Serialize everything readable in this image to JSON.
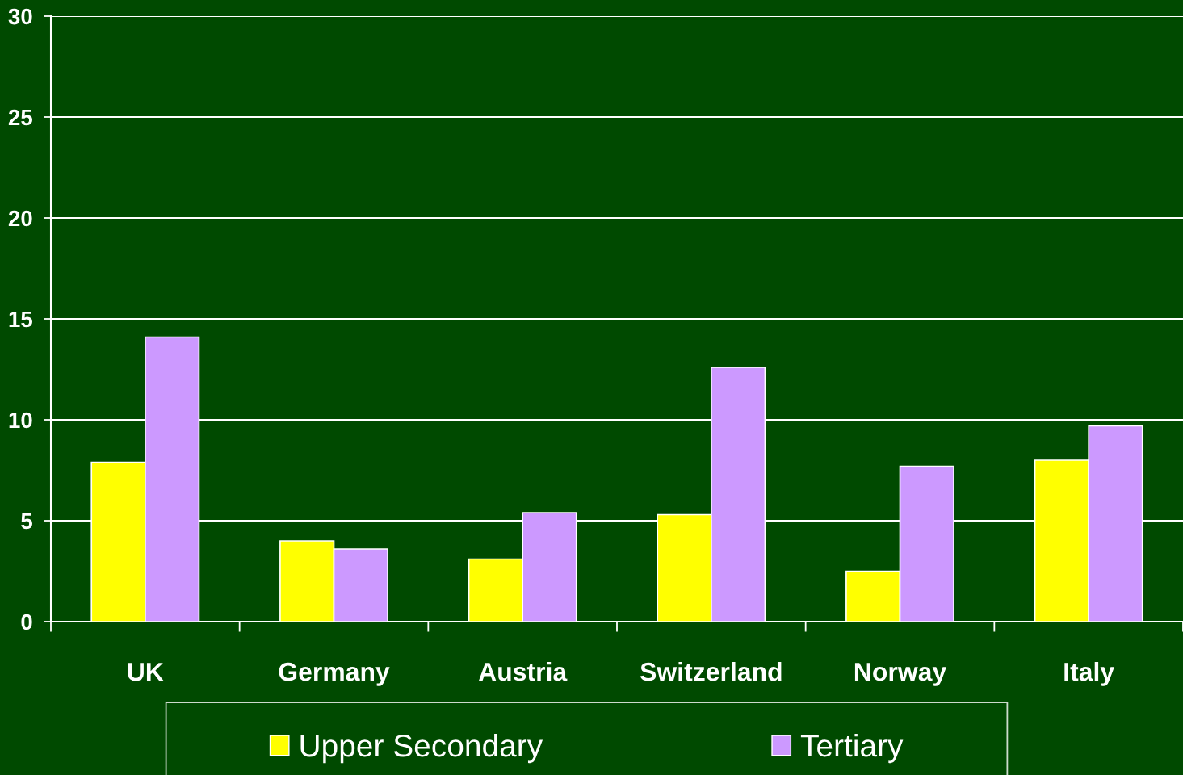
{
  "chart_data": {
    "type": "bar",
    "categories": [
      "UK",
      "Germany",
      "Austria",
      "Switzerland",
      "Norway",
      "Italy"
    ],
    "series": [
      {
        "name": "Upper Secondary",
        "color": "#ffff00",
        "values": [
          7.9,
          4.0,
          3.1,
          5.3,
          2.5,
          8.0
        ]
      },
      {
        "name": "Tertiary",
        "color": "#cc99ff",
        "values": [
          14.1,
          3.6,
          5.4,
          12.6,
          7.7,
          9.7
        ]
      }
    ],
    "ylim": [
      0,
      30
    ],
    "yticks": [
      0,
      5,
      10,
      15,
      20,
      25,
      30
    ],
    "grid": "y",
    "legend": "bottom"
  }
}
